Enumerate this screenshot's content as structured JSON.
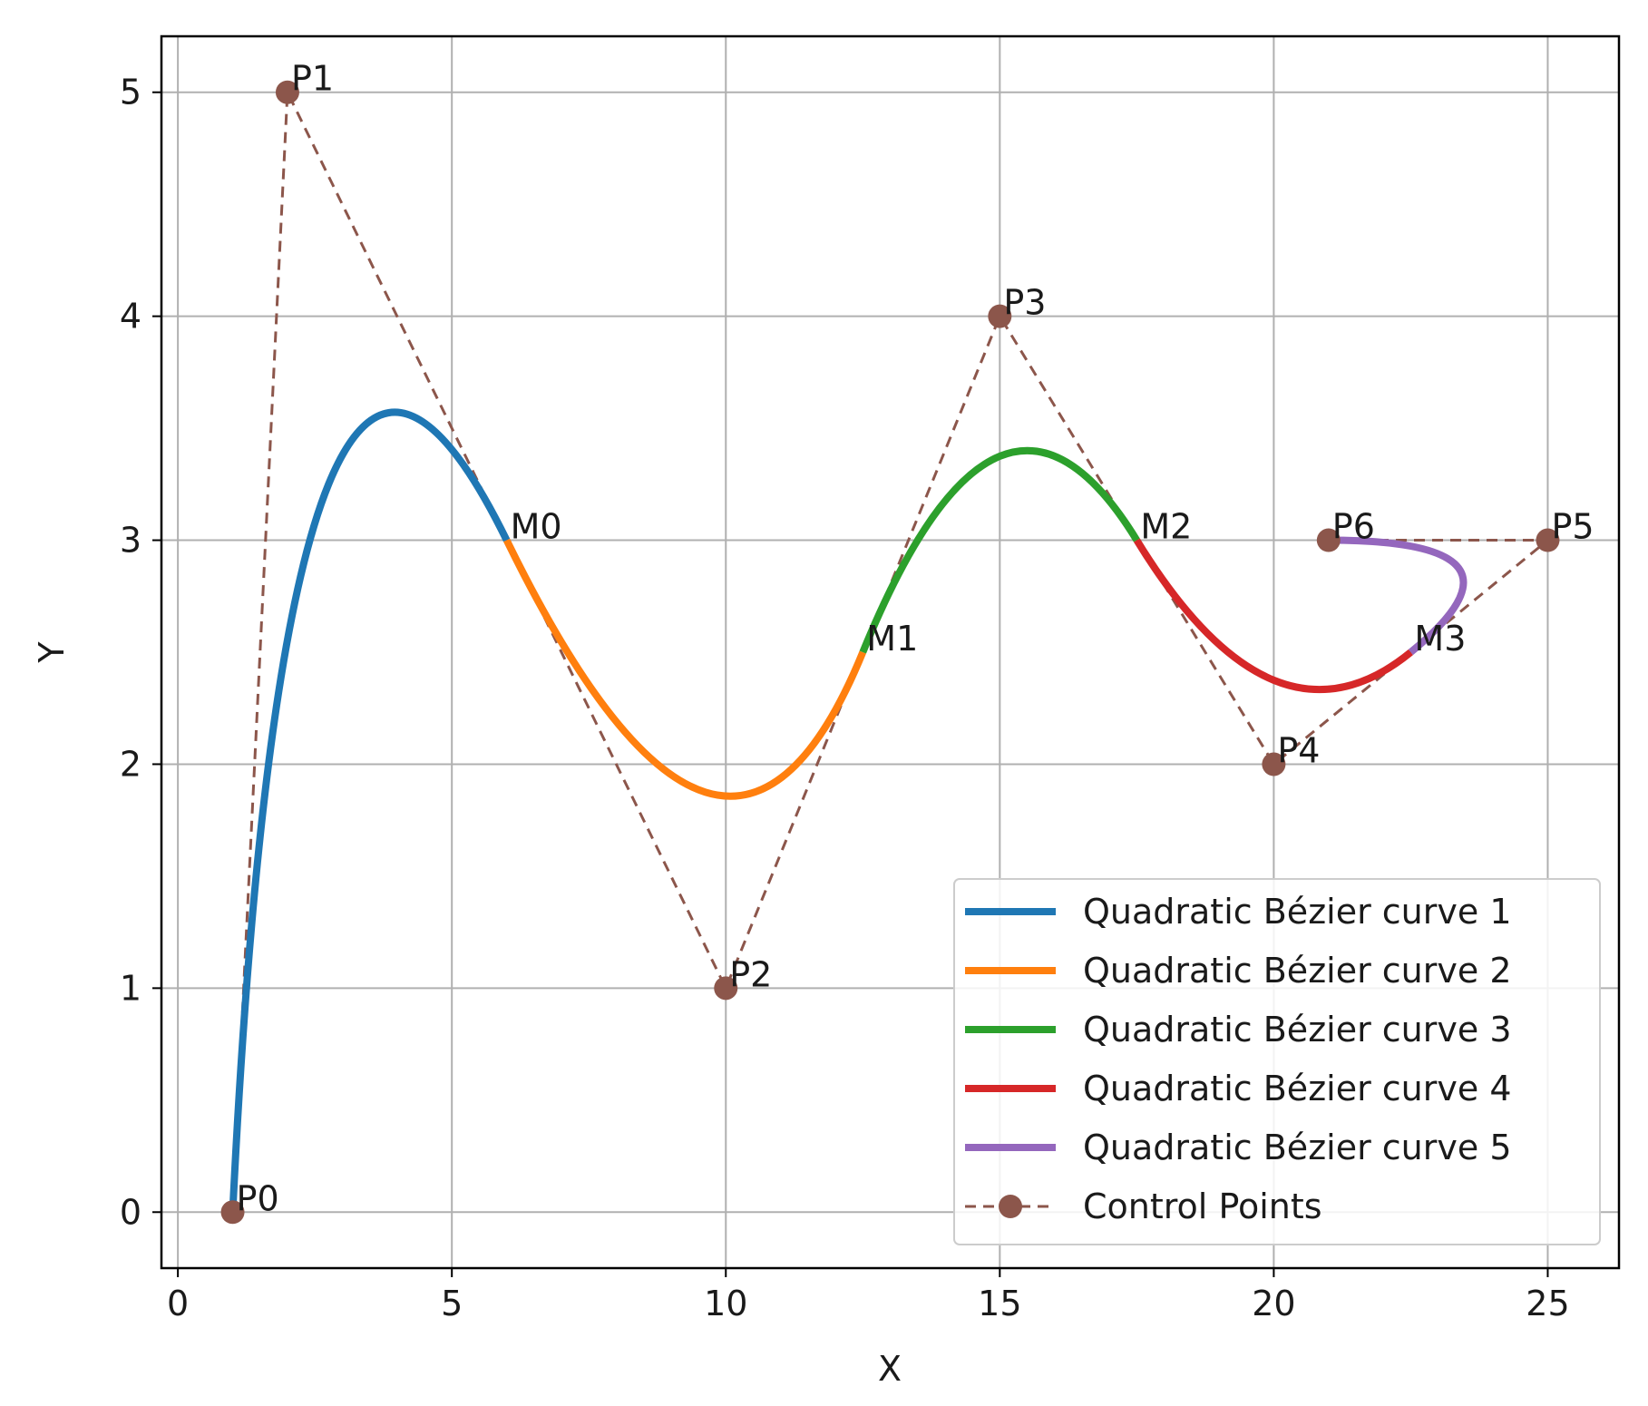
{
  "chart_data": {
    "type": "line",
    "title": "",
    "xlabel": "X",
    "ylabel": "Y",
    "xlim": [
      -0.3,
      26.3
    ],
    "ylim": [
      -0.25,
      5.25
    ],
    "xticks": [
      0,
      5,
      10,
      15,
      20,
      25
    ],
    "yticks": [
      0,
      1,
      2,
      3,
      4,
      5
    ],
    "grid": true,
    "legend_position": "lower-right",
    "colors": {
      "curve1": "#1f77b4",
      "curve2": "#ff7f0e",
      "curve3": "#2ca02c",
      "curve4": "#d62728",
      "curve5": "#9467bd",
      "control": "#8c564b"
    },
    "control_points": {
      "name": "Control Points",
      "x": [
        1,
        2,
        10,
        15,
        20,
        25,
        21
      ],
      "y": [
        0,
        5,
        1,
        4,
        2,
        3,
        3
      ],
      "labels": [
        "P0",
        "P1",
        "P2",
        "P3",
        "P4",
        "P5",
        "P6"
      ]
    },
    "midpoints": {
      "x": [
        6,
        12.5,
        17.5,
        22.5
      ],
      "y": [
        3,
        2.5,
        3,
        2.5
      ],
      "labels": [
        "M0",
        "M1",
        "M2",
        "M3"
      ]
    },
    "series": [
      {
        "name": "Quadratic Bézier curve 1",
        "start": [
          1,
          0
        ],
        "control": [
          2,
          5
        ],
        "end": [
          6,
          3
        ]
      },
      {
        "name": "Quadratic Bézier curve 2",
        "start": [
          6,
          3
        ],
        "control": [
          10,
          1
        ],
        "end": [
          12.5,
          2.5
        ]
      },
      {
        "name": "Quadratic Bézier curve 3",
        "start": [
          12.5,
          2.5
        ],
        "control": [
          15,
          4
        ],
        "end": [
          17.5,
          3
        ]
      },
      {
        "name": "Quadratic Bézier curve 4",
        "start": [
          17.5,
          3
        ],
        "control": [
          20,
          2
        ],
        "end": [
          22.5,
          2.5
        ]
      },
      {
        "name": "Quadratic Bézier curve 5",
        "start": [
          22.5,
          2.5
        ],
        "control": [
          25,
          3
        ],
        "end": [
          21,
          3
        ]
      }
    ]
  }
}
